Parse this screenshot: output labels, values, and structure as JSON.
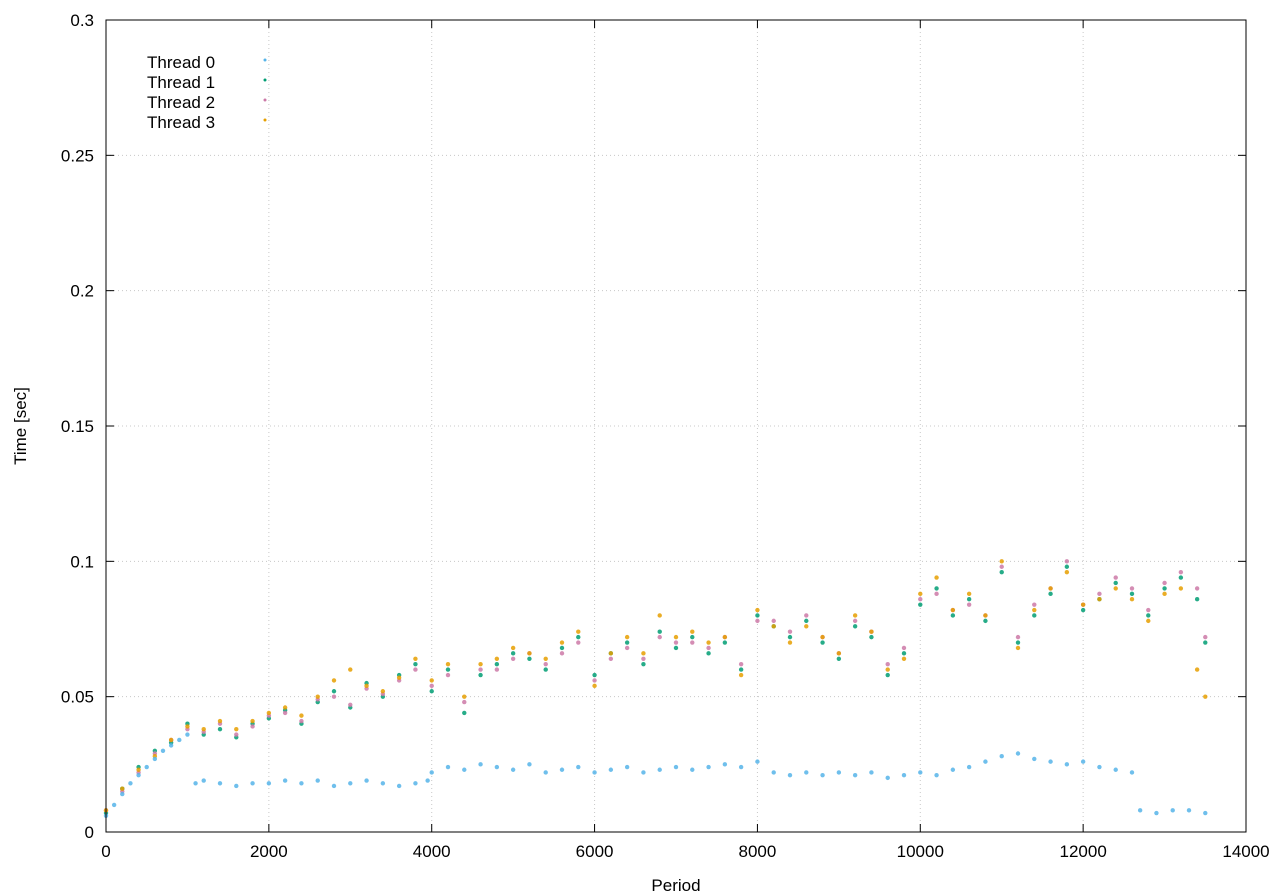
{
  "chart_data": {
    "type": "scatter",
    "title": "",
    "xlabel": "Period",
    "ylabel": "Time [sec]",
    "xlim": [
      0,
      14000
    ],
    "ylim": [
      0,
      0.3
    ],
    "x_ticks": [
      "0",
      "2000",
      "4000",
      "6000",
      "8000",
      "10000",
      "12000",
      "14000"
    ],
    "y_ticks": [
      "0",
      "0.05",
      "0.1",
      "0.15",
      "0.2",
      "0.25",
      "0.3"
    ],
    "grid": true,
    "legend_position": "top-left",
    "series": [
      {
        "name": "Thread 0",
        "color": "#56B4E9",
        "points": [
          [
            0,
            0.006
          ],
          [
            100,
            0.01
          ],
          [
            200,
            0.014
          ],
          [
            300,
            0.018
          ],
          [
            400,
            0.021
          ],
          [
            500,
            0.024
          ],
          [
            600,
            0.027
          ],
          [
            700,
            0.03
          ],
          [
            800,
            0.032
          ],
          [
            900,
            0.034
          ],
          [
            1000,
            0.036
          ],
          [
            1100,
            0.018
          ],
          [
            1200,
            0.019
          ],
          [
            1400,
            0.018
          ],
          [
            1600,
            0.017
          ],
          [
            1800,
            0.018
          ],
          [
            2000,
            0.018
          ],
          [
            2200,
            0.019
          ],
          [
            2400,
            0.018
          ],
          [
            2600,
            0.019
          ],
          [
            2800,
            0.017
          ],
          [
            3000,
            0.018
          ],
          [
            3200,
            0.019
          ],
          [
            3400,
            0.018
          ],
          [
            3600,
            0.017
          ],
          [
            3800,
            0.018
          ],
          [
            3950,
            0.019
          ],
          [
            4000,
            0.022
          ],
          [
            4200,
            0.024
          ],
          [
            4400,
            0.023
          ],
          [
            4600,
            0.025
          ],
          [
            4800,
            0.024
          ],
          [
            5000,
            0.023
          ],
          [
            5200,
            0.025
          ],
          [
            5400,
            0.022
          ],
          [
            5600,
            0.023
          ],
          [
            5800,
            0.024
          ],
          [
            6000,
            0.022
          ],
          [
            6200,
            0.023
          ],
          [
            6400,
            0.024
          ],
          [
            6600,
            0.022
          ],
          [
            6800,
            0.023
          ],
          [
            7000,
            0.024
          ],
          [
            7200,
            0.023
          ],
          [
            7400,
            0.024
          ],
          [
            7600,
            0.025
          ],
          [
            7800,
            0.024
          ],
          [
            8000,
            0.026
          ],
          [
            8200,
            0.022
          ],
          [
            8400,
            0.021
          ],
          [
            8600,
            0.022
          ],
          [
            8800,
            0.021
          ],
          [
            9000,
            0.022
          ],
          [
            9200,
            0.021
          ],
          [
            9400,
            0.022
          ],
          [
            9600,
            0.02
          ],
          [
            9800,
            0.021
          ],
          [
            10000,
            0.022
          ],
          [
            10200,
            0.021
          ],
          [
            10400,
            0.023
          ],
          [
            10600,
            0.024
          ],
          [
            10800,
            0.026
          ],
          [
            11000,
            0.028
          ],
          [
            11200,
            0.029
          ],
          [
            11400,
            0.027
          ],
          [
            11600,
            0.026
          ],
          [
            11800,
            0.025
          ],
          [
            12000,
            0.026
          ],
          [
            12200,
            0.024
          ],
          [
            12400,
            0.023
          ],
          [
            12600,
            0.022
          ],
          [
            12700,
            0.008
          ],
          [
            12900,
            0.007
          ],
          [
            13100,
            0.008
          ],
          [
            13300,
            0.008
          ],
          [
            13500,
            0.007
          ]
        ]
      },
      {
        "name": "Thread 1",
        "color": "#009E73",
        "points": [
          [
            0,
            0.007
          ],
          [
            200,
            0.016
          ],
          [
            400,
            0.024
          ],
          [
            600,
            0.03
          ],
          [
            800,
            0.033
          ],
          [
            1000,
            0.04
          ],
          [
            1200,
            0.036
          ],
          [
            1400,
            0.038
          ],
          [
            1600,
            0.035
          ],
          [
            1800,
            0.04
          ],
          [
            2000,
            0.042
          ],
          [
            2200,
            0.045
          ],
          [
            2400,
            0.04
          ],
          [
            2600,
            0.048
          ],
          [
            2800,
            0.052
          ],
          [
            3000,
            0.046
          ],
          [
            3200,
            0.055
          ],
          [
            3400,
            0.05
          ],
          [
            3600,
            0.058
          ],
          [
            3800,
            0.062
          ],
          [
            4000,
            0.052
          ],
          [
            4200,
            0.06
          ],
          [
            4400,
            0.044
          ],
          [
            4600,
            0.058
          ],
          [
            4800,
            0.062
          ],
          [
            5000,
            0.066
          ],
          [
            5200,
            0.064
          ],
          [
            5400,
            0.06
          ],
          [
            5600,
            0.068
          ],
          [
            5800,
            0.072
          ],
          [
            6000,
            0.058
          ],
          [
            6200,
            0.066
          ],
          [
            6400,
            0.07
          ],
          [
            6600,
            0.062
          ],
          [
            6800,
            0.074
          ],
          [
            7000,
            0.068
          ],
          [
            7200,
            0.072
          ],
          [
            7400,
            0.066
          ],
          [
            7600,
            0.07
          ],
          [
            7800,
            0.06
          ],
          [
            8000,
            0.08
          ],
          [
            8200,
            0.076
          ],
          [
            8400,
            0.072
          ],
          [
            8600,
            0.078
          ],
          [
            8800,
            0.07
          ],
          [
            9000,
            0.064
          ],
          [
            9200,
            0.076
          ],
          [
            9400,
            0.072
          ],
          [
            9600,
            0.058
          ],
          [
            9800,
            0.066
          ],
          [
            10000,
            0.084
          ],
          [
            10200,
            0.09
          ],
          [
            10400,
            0.08
          ],
          [
            10600,
            0.086
          ],
          [
            10800,
            0.078
          ],
          [
            11000,
            0.096
          ],
          [
            11200,
            0.07
          ],
          [
            11400,
            0.08
          ],
          [
            11600,
            0.088
          ],
          [
            11800,
            0.098
          ],
          [
            12000,
            0.082
          ],
          [
            12200,
            0.086
          ],
          [
            12400,
            0.092
          ],
          [
            12600,
            0.088
          ],
          [
            12800,
            0.08
          ],
          [
            13000,
            0.09
          ],
          [
            13200,
            0.094
          ],
          [
            13400,
            0.086
          ],
          [
            13500,
            0.07
          ]
        ]
      },
      {
        "name": "Thread 2",
        "color": "#CC79A7",
        "points": [
          [
            0,
            0.008
          ],
          [
            200,
            0.015
          ],
          [
            400,
            0.022
          ],
          [
            600,
            0.029
          ],
          [
            800,
            0.034
          ],
          [
            1000,
            0.038
          ],
          [
            1200,
            0.037
          ],
          [
            1400,
            0.04
          ],
          [
            1600,
            0.036
          ],
          [
            1800,
            0.039
          ],
          [
            2000,
            0.043
          ],
          [
            2200,
            0.044
          ],
          [
            2400,
            0.041
          ],
          [
            2600,
            0.049
          ],
          [
            2800,
            0.05
          ],
          [
            3000,
            0.047
          ],
          [
            3200,
            0.053
          ],
          [
            3400,
            0.051
          ],
          [
            3600,
            0.056
          ],
          [
            3800,
            0.06
          ],
          [
            4000,
            0.054
          ],
          [
            4200,
            0.058
          ],
          [
            4400,
            0.048
          ],
          [
            4600,
            0.06
          ],
          [
            4800,
            0.06
          ],
          [
            5000,
            0.064
          ],
          [
            5200,
            0.066
          ],
          [
            5400,
            0.062
          ],
          [
            5600,
            0.066
          ],
          [
            5800,
            0.07
          ],
          [
            6000,
            0.056
          ],
          [
            6200,
            0.064
          ],
          [
            6400,
            0.068
          ],
          [
            6600,
            0.064
          ],
          [
            6800,
            0.072
          ],
          [
            7000,
            0.07
          ],
          [
            7200,
            0.07
          ],
          [
            7400,
            0.068
          ],
          [
            7600,
            0.072
          ],
          [
            7800,
            0.062
          ],
          [
            8000,
            0.078
          ],
          [
            8200,
            0.078
          ],
          [
            8400,
            0.074
          ],
          [
            8600,
            0.08
          ],
          [
            8800,
            0.072
          ],
          [
            9000,
            0.066
          ],
          [
            9200,
            0.078
          ],
          [
            9400,
            0.074
          ],
          [
            9600,
            0.062
          ],
          [
            9800,
            0.068
          ],
          [
            10000,
            0.086
          ],
          [
            10200,
            0.088
          ],
          [
            10400,
            0.082
          ],
          [
            10600,
            0.084
          ],
          [
            10800,
            0.08
          ],
          [
            11000,
            0.098
          ],
          [
            11200,
            0.072
          ],
          [
            11400,
            0.084
          ],
          [
            11600,
            0.09
          ],
          [
            11800,
            0.1
          ],
          [
            12000,
            0.084
          ],
          [
            12200,
            0.088
          ],
          [
            12400,
            0.094
          ],
          [
            12600,
            0.09
          ],
          [
            12800,
            0.082
          ],
          [
            13000,
            0.092
          ],
          [
            13200,
            0.096
          ],
          [
            13400,
            0.09
          ],
          [
            13500,
            0.072
          ]
        ]
      },
      {
        "name": "Thread 3",
        "color": "#E69F00",
        "points": [
          [
            0,
            0.008
          ],
          [
            200,
            0.016
          ],
          [
            400,
            0.023
          ],
          [
            600,
            0.028
          ],
          [
            800,
            0.034
          ],
          [
            1000,
            0.039
          ],
          [
            1200,
            0.038
          ],
          [
            1400,
            0.041
          ],
          [
            1600,
            0.038
          ],
          [
            1800,
            0.041
          ],
          [
            2000,
            0.044
          ],
          [
            2200,
            0.046
          ],
          [
            2400,
            0.043
          ],
          [
            2600,
            0.05
          ],
          [
            2800,
            0.056
          ],
          [
            3000,
            0.06
          ],
          [
            3200,
            0.054
          ],
          [
            3400,
            0.052
          ],
          [
            3600,
            0.057
          ],
          [
            3800,
            0.064
          ],
          [
            4000,
            0.056
          ],
          [
            4200,
            0.062
          ],
          [
            4400,
            0.05
          ],
          [
            4600,
            0.062
          ],
          [
            4800,
            0.064
          ],
          [
            5000,
            0.068
          ],
          [
            5200,
            0.066
          ],
          [
            5400,
            0.064
          ],
          [
            5600,
            0.07
          ],
          [
            5800,
            0.074
          ],
          [
            6000,
            0.054
          ],
          [
            6200,
            0.066
          ],
          [
            6400,
            0.072
          ],
          [
            6600,
            0.066
          ],
          [
            6800,
            0.08
          ],
          [
            7000,
            0.072
          ],
          [
            7200,
            0.074
          ],
          [
            7400,
            0.07
          ],
          [
            7600,
            0.072
          ],
          [
            7800,
            0.058
          ],
          [
            8000,
            0.082
          ],
          [
            8200,
            0.076
          ],
          [
            8400,
            0.07
          ],
          [
            8600,
            0.076
          ],
          [
            8800,
            0.072
          ],
          [
            9000,
            0.066
          ],
          [
            9200,
            0.08
          ],
          [
            9400,
            0.074
          ],
          [
            9600,
            0.06
          ],
          [
            9800,
            0.064
          ],
          [
            10000,
            0.088
          ],
          [
            10200,
            0.094
          ],
          [
            10400,
            0.082
          ],
          [
            10600,
            0.088
          ],
          [
            10800,
            0.08
          ],
          [
            11000,
            0.1
          ],
          [
            11200,
            0.068
          ],
          [
            11400,
            0.082
          ],
          [
            11600,
            0.09
          ],
          [
            11800,
            0.096
          ],
          [
            12000,
            0.084
          ],
          [
            12200,
            0.086
          ],
          [
            12400,
            0.09
          ],
          [
            12600,
            0.086
          ],
          [
            12800,
            0.078
          ],
          [
            13000,
            0.088
          ],
          [
            13200,
            0.09
          ],
          [
            13400,
            0.06
          ],
          [
            13500,
            0.05
          ]
        ]
      }
    ]
  }
}
